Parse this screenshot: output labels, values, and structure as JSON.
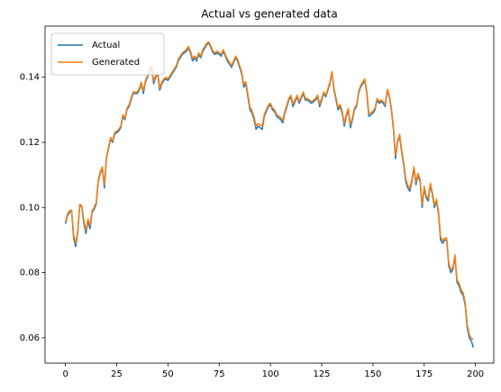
{
  "chart_data": {
    "type": "line",
    "title": "Actual vs generated data",
    "x": [
      0,
      1,
      2,
      3,
      4,
      5,
      6,
      7,
      8,
      9,
      10,
      11,
      12,
      13,
      14,
      15,
      16,
      17,
      18,
      19,
      20,
      21,
      22,
      23,
      24,
      25,
      26,
      27,
      28,
      29,
      30,
      31,
      32,
      33,
      34,
      35,
      36,
      37,
      38,
      39,
      40,
      41,
      42,
      43,
      44,
      45,
      46,
      47,
      48,
      49,
      50,
      51,
      52,
      53,
      54,
      55,
      56,
      57,
      58,
      59,
      60,
      61,
      62,
      63,
      64,
      65,
      66,
      67,
      68,
      69,
      70,
      71,
      72,
      73,
      74,
      75,
      76,
      77,
      78,
      79,
      80,
      81,
      82,
      83,
      84,
      85,
      86,
      87,
      88,
      89,
      90,
      91,
      92,
      93,
      94,
      95,
      96,
      97,
      98,
      99,
      100,
      101,
      102,
      103,
      104,
      105,
      106,
      107,
      108,
      109,
      110,
      111,
      112,
      113,
      114,
      115,
      116,
      117,
      118,
      119,
      120,
      121,
      122,
      123,
      124,
      125,
      126,
      127,
      128,
      129,
      130,
      131,
      132,
      133,
      134,
      135,
      136,
      137,
      138,
      139,
      140,
      141,
      142,
      143,
      144,
      145,
      146,
      147,
      148,
      149,
      150,
      151,
      152,
      153,
      154,
      155,
      156,
      157,
      158,
      159,
      160,
      161,
      162,
      163,
      164,
      165,
      166,
      167,
      168,
      169,
      170,
      171,
      172,
      173,
      174,
      175,
      176,
      177,
      178,
      179,
      180,
      181,
      182,
      183,
      184,
      185,
      186,
      187,
      188,
      189,
      190,
      191,
      192,
      193,
      194,
      195,
      196,
      197,
      198,
      199
    ],
    "series": [
      {
        "name": "Actual",
        "color": "#1f77b4",
        "values": [
          0.095,
          0.0975,
          0.0985,
          0.099,
          0.0905,
          0.088,
          0.0925,
          0.101,
          0.1,
          0.095,
          0.092,
          0.096,
          0.0935,
          0.0985,
          0.0995,
          0.101,
          0.108,
          0.1105,
          0.112,
          0.106,
          0.115,
          0.118,
          0.121,
          0.12,
          0.1225,
          0.123,
          0.1235,
          0.1245,
          0.128,
          0.127,
          0.13,
          0.131,
          0.133,
          0.135,
          0.135,
          0.135,
          0.136,
          0.138,
          0.135,
          0.1385,
          0.14,
          0.142,
          0.143,
          0.138,
          0.14,
          0.141,
          0.136,
          0.138,
          0.139,
          0.1395,
          0.139,
          0.14,
          0.141,
          0.142,
          0.143,
          0.145,
          0.146,
          0.147,
          0.1475,
          0.148,
          0.149,
          0.1475,
          0.145,
          0.146,
          0.145,
          0.147,
          0.146,
          0.148,
          0.149,
          0.15,
          0.1505,
          0.149,
          0.1475,
          0.147,
          0.1475,
          0.147,
          0.1465,
          0.148,
          0.1465,
          0.145,
          0.144,
          0.143,
          0.1445,
          0.146,
          0.145,
          0.143,
          0.141,
          0.137,
          0.138,
          0.134,
          0.13,
          0.129,
          0.127,
          0.124,
          0.125,
          0.1245,
          0.124,
          0.128,
          0.1295,
          0.131,
          0.1315,
          0.13,
          0.1295,
          0.128,
          0.1275,
          0.127,
          0.126,
          0.129,
          0.131,
          0.133,
          0.134,
          0.131,
          0.1325,
          0.134,
          0.132,
          0.1335,
          0.135,
          0.133,
          0.133,
          0.1325,
          0.132,
          0.1325,
          0.133,
          0.134,
          0.131,
          0.133,
          0.135,
          0.134,
          0.136,
          0.138,
          0.1415,
          0.136,
          0.133,
          0.13,
          0.131,
          0.129,
          0.125,
          0.128,
          0.13,
          0.1245,
          0.127,
          0.13,
          0.131,
          0.135,
          0.137,
          0.138,
          0.139,
          0.135,
          0.128,
          0.1285,
          0.129,
          0.13,
          0.133,
          0.132,
          0.1325,
          0.132,
          0.131,
          0.136,
          0.134,
          0.13,
          0.124,
          0.115,
          0.12,
          0.122,
          0.117,
          0.113,
          0.108,
          0.106,
          0.105,
          0.108,
          0.112,
          0.107,
          0.11,
          0.108,
          0.1,
          0.106,
          0.103,
          0.102,
          0.107,
          0.104,
          0.1,
          0.102,
          0.098,
          0.09,
          0.089,
          0.09,
          0.09,
          0.082,
          0.08,
          0.081,
          0.085,
          0.077,
          0.076,
          0.074,
          0.073,
          0.07,
          0.063,
          0.06,
          0.059,
          0.057
        ]
      },
      {
        "name": "Generated",
        "color": "#ff7f0e",
        "values": [
          0.0955,
          0.098,
          0.099,
          0.0992,
          0.0915,
          0.089,
          0.093,
          0.101,
          0.1005,
          0.096,
          0.093,
          0.0965,
          0.0945,
          0.099,
          0.1,
          0.1015,
          0.1085,
          0.111,
          0.1125,
          0.107,
          0.1155,
          0.1185,
          0.1215,
          0.1205,
          0.123,
          0.1235,
          0.124,
          0.125,
          0.1285,
          0.1275,
          0.1305,
          0.1315,
          0.1335,
          0.1355,
          0.1355,
          0.1355,
          0.1365,
          0.1385,
          0.1358,
          0.139,
          0.1405,
          0.1425,
          0.1435,
          0.1388,
          0.1405,
          0.1415,
          0.1368,
          0.1385,
          0.1395,
          0.14,
          0.1395,
          0.1405,
          0.1415,
          0.1425,
          0.1435,
          0.1455,
          0.1465,
          0.1475,
          0.148,
          0.1485,
          0.1495,
          0.148,
          0.1458,
          0.1465,
          0.1456,
          0.1475,
          0.1465,
          0.1485,
          0.1495,
          0.1505,
          0.1508,
          0.1495,
          0.148,
          0.1475,
          0.148,
          0.1475,
          0.147,
          0.1485,
          0.147,
          0.1456,
          0.1446,
          0.1436,
          0.145,
          0.1465,
          0.1455,
          0.1436,
          0.1416,
          0.1378,
          0.1386,
          0.1348,
          0.1308,
          0.1298,
          0.1278,
          0.125,
          0.1258,
          0.1253,
          0.125,
          0.1286,
          0.13,
          0.1315,
          0.132,
          0.1306,
          0.13,
          0.1286,
          0.1281,
          0.1276,
          0.1268,
          0.1295,
          0.1315,
          0.1335,
          0.1345,
          0.1318,
          0.133,
          0.1345,
          0.1326,
          0.134,
          0.1355,
          0.1336,
          0.1335,
          0.133,
          0.1326,
          0.133,
          0.1335,
          0.1345,
          0.1318,
          0.1335,
          0.1355,
          0.1345,
          0.1365,
          0.1385,
          0.1418,
          0.1366,
          0.1336,
          0.1308,
          0.1316,
          0.1296,
          0.1258,
          0.1286,
          0.1305,
          0.1255,
          0.1276,
          0.1305,
          0.1315,
          0.1355,
          0.1375,
          0.1385,
          0.1395,
          0.1356,
          0.1288,
          0.1291,
          0.1296,
          0.1305,
          0.1335,
          0.1326,
          0.133,
          0.1326,
          0.1316,
          0.1363,
          0.1345,
          0.1306,
          0.1248,
          0.116,
          0.1205,
          0.1225,
          0.1178,
          0.1138,
          0.1088,
          0.1068,
          0.1058,
          0.1086,
          0.1125,
          0.1078,
          0.1105,
          0.1086,
          0.101,
          0.1065,
          0.1036,
          0.1028,
          0.1075,
          0.1046,
          0.1008,
          0.1026,
          0.0988,
          0.091,
          0.0898,
          0.0906,
          0.0906,
          0.083,
          0.0808,
          0.0816,
          0.0855,
          0.0778,
          0.0768,
          0.0748,
          0.0738,
          0.0708,
          0.064,
          0.061,
          0.0598,
          0.0595
        ]
      }
    ],
    "xlim": [
      -9.95,
      208.95
    ],
    "xticks": [
      0,
      25,
      50,
      75,
      100,
      125,
      150,
      175,
      200
    ],
    "ylim": [
      0.0522,
      0.1557
    ],
    "yticks": [
      0.06,
      0.08,
      {
        "value": 0.1,
        "label": "0.10"
      },
      0.12,
      0.14
    ],
    "legend": "upper left",
    "grid": false
  }
}
